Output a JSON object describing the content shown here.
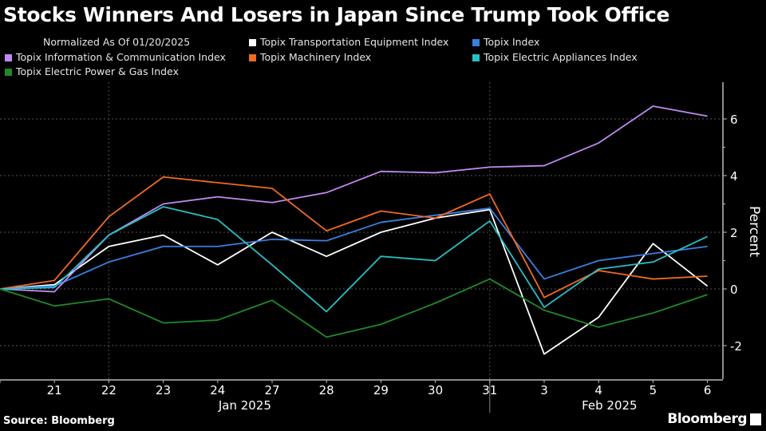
{
  "chart_data": {
    "type": "line",
    "title": "Stocks Winners And Losers in Japan Since Trump Took Office",
    "subtitle": "Normalized As Of 01/20/2025",
    "ylabel": "Percent",
    "xlabel": "",
    "categories": [
      "",
      "21",
      "22",
      "23",
      "24",
      "27",
      "28",
      "29",
      "30",
      "31",
      "3",
      "4",
      "5",
      "6"
    ],
    "month_labels": [
      "Jan 2025",
      "Feb 2025"
    ],
    "ylim": [
      -3.1,
      7.3
    ],
    "yticks": [
      -2,
      0,
      2,
      4,
      6
    ],
    "grid": true,
    "legend_placement": "top",
    "series": [
      {
        "name": "Topix Transportation Equipment Index",
        "color": "#ffffff",
        "values": [
          0,
          0.15,
          1.5,
          1.9,
          0.85,
          2.0,
          1.15,
          2.0,
          2.5,
          2.8,
          -2.3,
          -1.0,
          1.6,
          0.1
        ]
      },
      {
        "name": "Topix Index",
        "color": "#3a7fe0",
        "values": [
          0,
          0.1,
          0.95,
          1.5,
          1.5,
          1.75,
          1.7,
          2.35,
          2.6,
          2.85,
          0.35,
          1.0,
          1.25,
          1.5
        ]
      },
      {
        "name": "Topix Information & Communication Index",
        "color": "#c08af0",
        "values": [
          0,
          -0.1,
          1.9,
          3.0,
          3.25,
          3.05,
          3.4,
          4.15,
          4.1,
          4.3,
          4.35,
          5.15,
          6.45,
          6.1
        ]
      },
      {
        "name": "Topix Machinery Index",
        "color": "#f26a21",
        "values": [
          0,
          0.3,
          2.55,
          3.95,
          3.75,
          3.55,
          2.05,
          2.75,
          2.5,
          3.35,
          -0.3,
          0.65,
          0.35,
          0.45
        ]
      },
      {
        "name": "Topix Electric Appliances Index",
        "color": "#27c0c4",
        "values": [
          0,
          0.05,
          1.9,
          2.9,
          2.45,
          0.85,
          -0.8,
          1.15,
          1.0,
          2.4,
          -0.65,
          0.7,
          0.95,
          1.85
        ]
      },
      {
        "name": "Topix Electric Power & Gas Index",
        "color": "#1f8a2c",
        "values": [
          0,
          -0.6,
          -0.35,
          -1.2,
          -1.1,
          -0.4,
          -1.7,
          -1.25,
          -0.5,
          0.35,
          -0.75,
          -1.35,
          -0.85,
          -0.2
        ]
      }
    ]
  },
  "footer": {
    "source": "Source: Bloomberg",
    "brand": "Bloomberg"
  }
}
